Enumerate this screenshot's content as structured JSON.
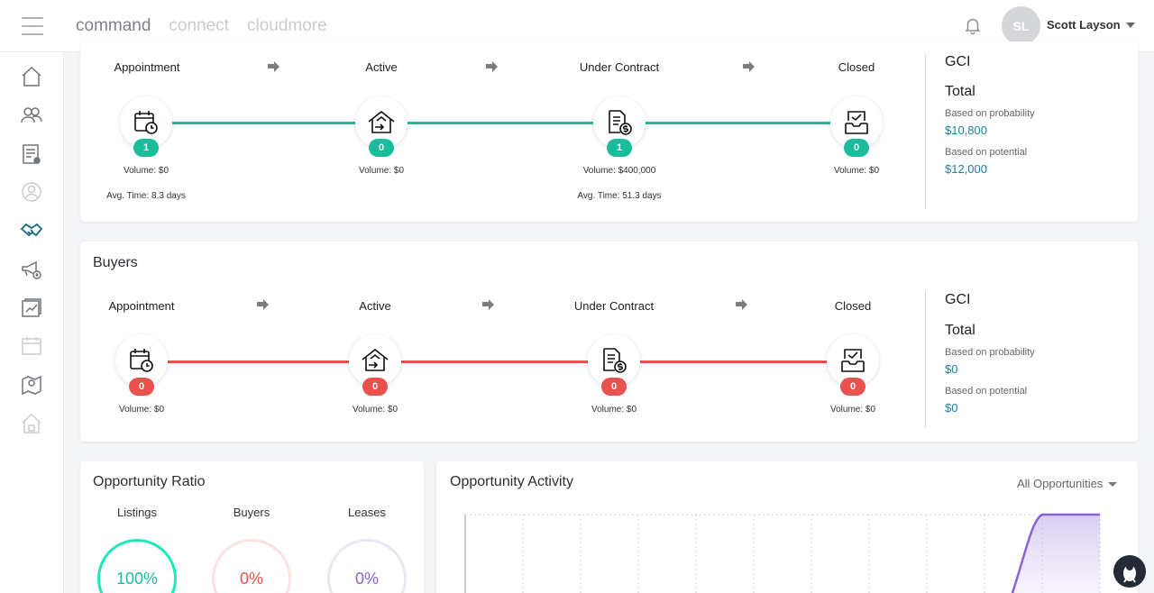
{
  "topbar": {
    "tabs": [
      {
        "label": "command",
        "active": true
      },
      {
        "label": "connect",
        "active": false
      },
      {
        "label": "cloudmore",
        "active": false
      }
    ],
    "user": {
      "initials": "SL",
      "name": "Scott Layson"
    }
  },
  "sidebar": {
    "icons": [
      "home-icon",
      "contacts-icon",
      "listings-report-icon",
      "profile-icon",
      "deals-handshake-icon",
      "marketing-megaphone-icon",
      "reports-icon",
      "calendar-icon",
      "map-pin-icon",
      "property-icon"
    ],
    "active_icon": "deals-handshake-icon"
  },
  "colors": {
    "listings_accent": "#1abc9c",
    "buyers_accent": "#e9514f",
    "leases_accent": "#8a63d2",
    "link_blue": "#1b7fa6"
  },
  "listings": {
    "stages": [
      {
        "label": "Appointment",
        "count": "1",
        "volume": "Volume: $0",
        "avg_time": "Avg. Time: 8.3 days"
      },
      {
        "label": "Active",
        "count": "0",
        "volume": "Volume: $0",
        "avg_time": ""
      },
      {
        "label": "Under Contract",
        "count": "1",
        "volume": "Volume: $400,000",
        "avg_time": "Avg. Time: 51.3 days"
      },
      {
        "label": "Closed",
        "count": "0",
        "volume": "Volume: $0",
        "avg_time": ""
      }
    ],
    "gci": {
      "title": "GCI",
      "total_label": "Total",
      "probability_label": "Based on probability",
      "probability_value": "$10,800",
      "potential_label": "Based on potential",
      "potential_value": "$12,000"
    }
  },
  "buyers": {
    "title": "Buyers",
    "stages": [
      {
        "label": "Appointment",
        "count": "0",
        "volume": "Volume: $0"
      },
      {
        "label": "Active",
        "count": "0",
        "volume": "Volume: $0"
      },
      {
        "label": "Under Contract",
        "count": "0",
        "volume": "Volume: $0"
      },
      {
        "label": "Closed",
        "count": "0",
        "volume": "Volume: $0"
      }
    ],
    "gci": {
      "title": "GCI",
      "total_label": "Total",
      "probability_label": "Based on probability",
      "probability_value": "$0",
      "potential_label": "Based on potential",
      "potential_value": "$0"
    }
  },
  "opportunity_ratio": {
    "title": "Opportunity Ratio",
    "items": [
      {
        "label": "Listings",
        "value": "100%"
      },
      {
        "label": "Buyers",
        "value": "0%"
      },
      {
        "label": "Leases",
        "value": "0%"
      }
    ]
  },
  "opportunity_activity": {
    "title": "Opportunity Activity",
    "filter": "All Opportunities"
  }
}
